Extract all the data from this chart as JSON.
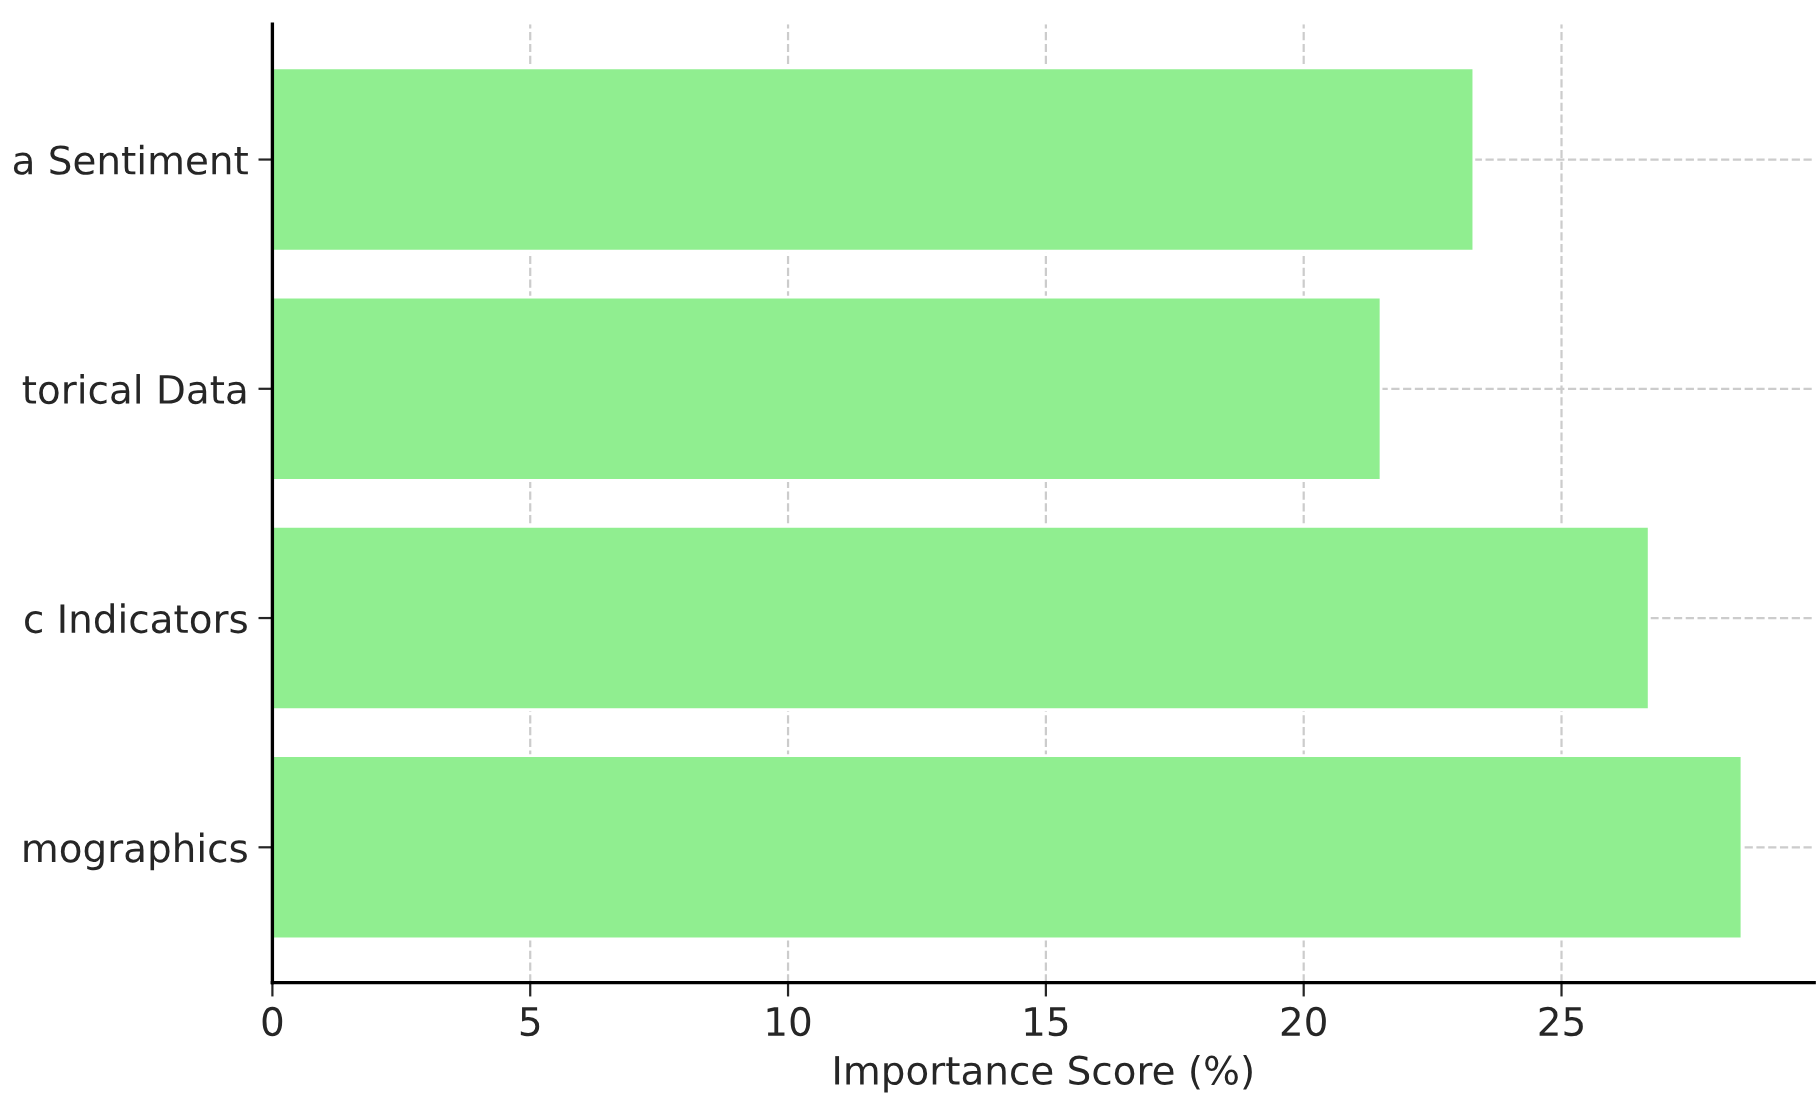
{
  "chart_data": {
    "type": "bar",
    "orientation": "horizontal",
    "xlabel": "Importance Score (%)",
    "categories": [
      "a Sentiment",
      "torical Data",
      "c Indicators",
      "mographics"
    ],
    "values": [
      23.3,
      21.5,
      26.7,
      28.5
    ],
    "color": "#90ee90",
    "xlim": [
      0,
      29.9
    ],
    "xticks": [
      0,
      5,
      10,
      15,
      20,
      25
    ],
    "grid": true
  }
}
